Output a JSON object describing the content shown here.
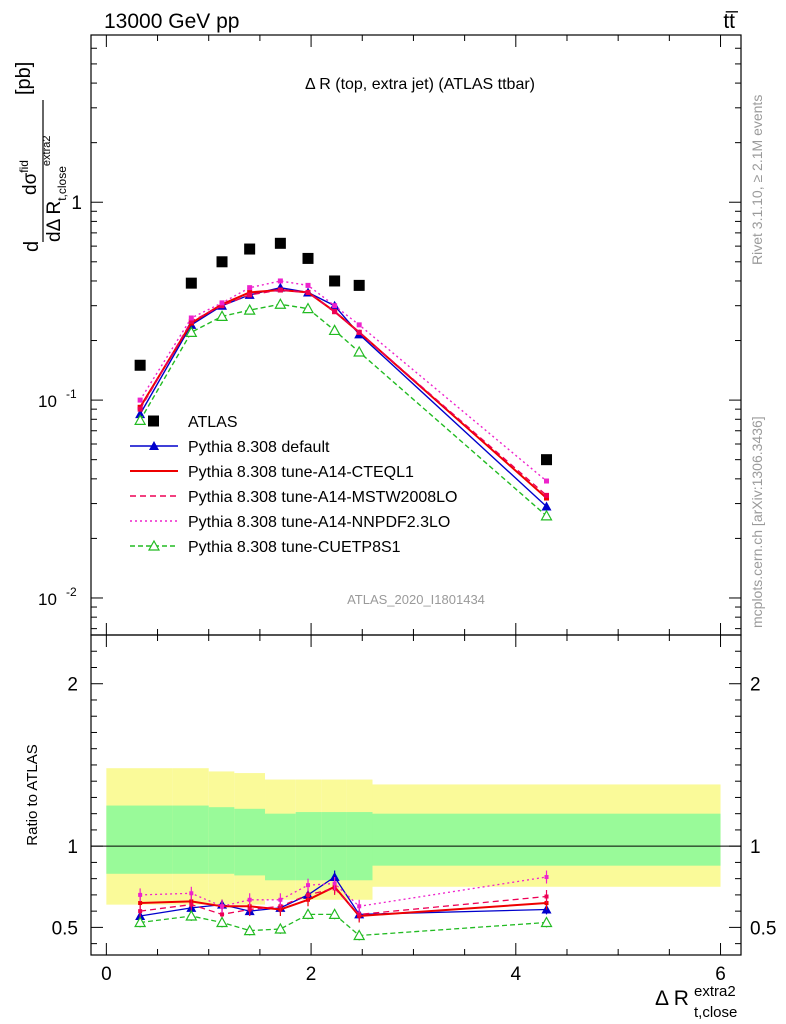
{
  "header": {
    "energy_label": "13000 GeV pp",
    "process_label": "tt̅"
  },
  "side_text": {
    "rivet": "Rivet 3.1.10, ≥ 2.1M events",
    "mcplots": "mcplots.cern.ch [arXiv:1306.3436]"
  },
  "colors": {
    "atlas": "#000000",
    "default": "#0000cc",
    "cteql1": "#ee0000",
    "mstw": "#ee0055",
    "nnpdf": "#ee22cc",
    "cuetp8s1": "#22bb22",
    "band_outer": "#fafa99",
    "band_inner": "#99fa99"
  },
  "chart_data": [
    {
      "type": "line",
      "title": "Δ R (top, extra jet) (ATLAS ttbar)",
      "ylabel": "dσ^fid / dΔ R_{t,close}^{extra2} [pb]",
      "analysis_label": "ATLAS_2020_I1801434",
      "y_scale": "log",
      "ylim": [
        0.0065,
        7.0
      ],
      "xlim": [
        -0.15,
        6.2
      ],
      "y_tick_labels": [
        "10^{-2}",
        "10^{-1}",
        "1"
      ],
      "legend_position": "bottom-left",
      "x": [
        0.33,
        0.83,
        1.13,
        1.4,
        1.7,
        1.97,
        2.23,
        2.47,
        4.3
      ],
      "series": [
        {
          "key": "atlas",
          "name": "ATLAS",
          "marker": "square",
          "values": [
            0.15,
            0.39,
            0.5,
            0.58,
            0.62,
            0.52,
            0.4,
            0.38,
            0.05
          ]
        },
        {
          "key": "default",
          "name": "Pythia 8.308 default",
          "marker": "triangle",
          "dash": "",
          "values": [
            0.085,
            0.24,
            0.3,
            0.34,
            0.37,
            0.35,
            0.3,
            0.215,
            0.029
          ]
        },
        {
          "key": "cteql1",
          "name": "Pythia 8.308 tune-A14-CTEQL1",
          "marker": "none",
          "dash": "",
          "values": [
            0.092,
            0.245,
            0.305,
            0.35,
            0.36,
            0.35,
            0.28,
            0.22,
            0.032
          ]
        },
        {
          "key": "mstw",
          "name": "Pythia 8.308 tune-A14-MSTW2008LO",
          "marker": "none",
          "dash": "6,4",
          "values": [
            0.09,
            0.25,
            0.3,
            0.34,
            0.36,
            0.35,
            0.28,
            0.22,
            0.033
          ]
        },
        {
          "key": "nnpdf",
          "name": "Pythia 8.308 tune-A14-NNPDF2.3LO",
          "marker": "none",
          "dash": "2,3",
          "values": [
            0.1,
            0.26,
            0.31,
            0.37,
            0.4,
            0.38,
            0.3,
            0.24,
            0.039
          ]
        },
        {
          "key": "cuetp8s1",
          "name": "Pythia 8.308 tune-CUETP8S1",
          "marker": "triangle-open",
          "dash": "5,3",
          "values": [
            0.079,
            0.22,
            0.265,
            0.285,
            0.305,
            0.29,
            0.225,
            0.175,
            0.026
          ]
        }
      ]
    },
    {
      "type": "line",
      "ylabel": "Ratio to ATLAS",
      "xlabel": "Δ R_{t,close}^{extra2}",
      "ylim": [
        0.33,
        2.3
      ],
      "xlim": [
        -0.15,
        6.2
      ],
      "x_ticks": [
        0,
        2,
        4,
        6
      ],
      "y_ticks": [
        0.5,
        1,
        2
      ],
      "reference_line": 1,
      "x": [
        0.33,
        0.83,
        1.13,
        1.4,
        1.7,
        1.97,
        2.23,
        2.47,
        4.3
      ],
      "bands": {
        "edges": [
          0,
          0.65,
          1,
          1.25,
          1.55,
          1.85,
          2.1,
          2.35,
          2.6,
          6
        ],
        "outer_lo": [
          0.64,
          0.64,
          0.64,
          0.64,
          0.67,
          0.67,
          0.67,
          0.67,
          0.75
        ],
        "outer_hi": [
          1.48,
          1.48,
          1.46,
          1.45,
          1.41,
          1.41,
          1.41,
          1.41,
          1.38
        ],
        "inner_lo": [
          0.83,
          0.83,
          0.83,
          0.82,
          0.79,
          0.79,
          0.79,
          0.79,
          0.88
        ],
        "inner_hi": [
          1.25,
          1.25,
          1.24,
          1.23,
          1.2,
          1.21,
          1.21,
          1.21,
          1.2
        ]
      },
      "series": [
        {
          "key": "default",
          "values": [
            0.57,
            0.62,
            0.64,
            0.6,
            0.62,
            0.7,
            0.81,
            0.58,
            0.61
          ],
          "errors": [
            0.03,
            0.03,
            0.03,
            0.03,
            0.03,
            0.03,
            0.04,
            0.03,
            0.03
          ]
        },
        {
          "key": "cteql1",
          "values": [
            0.65,
            0.66,
            0.63,
            0.63,
            0.61,
            0.67,
            0.75,
            0.57,
            0.65
          ],
          "errors": [
            0.04,
            0.04,
            0.04,
            0.04,
            0.04,
            0.04,
            0.04,
            0.04,
            0.04
          ]
        },
        {
          "key": "mstw",
          "values": [
            0.6,
            0.64,
            0.58,
            0.61,
            0.63,
            0.7,
            0.74,
            0.58,
            0.69
          ],
          "errors": [
            0.04,
            0.04,
            0.04,
            0.04,
            0.04,
            0.04,
            0.04,
            0.04,
            0.04
          ]
        },
        {
          "key": "nnpdf",
          "values": [
            0.7,
            0.71,
            0.63,
            0.67,
            0.67,
            0.76,
            0.77,
            0.63,
            0.81
          ],
          "errors": [
            0.04,
            0.04,
            0.04,
            0.04,
            0.04,
            0.04,
            0.04,
            0.04,
            0.04
          ]
        },
        {
          "key": "cuetp8s1",
          "values": [
            0.53,
            0.57,
            0.53,
            0.48,
            0.49,
            0.58,
            0.58,
            0.45,
            0.53
          ],
          "errors": [
            0.03,
            0.03,
            0.03,
            0.03,
            0.03,
            0.03,
            0.03,
            0.03,
            0.03
          ]
        }
      ]
    }
  ]
}
